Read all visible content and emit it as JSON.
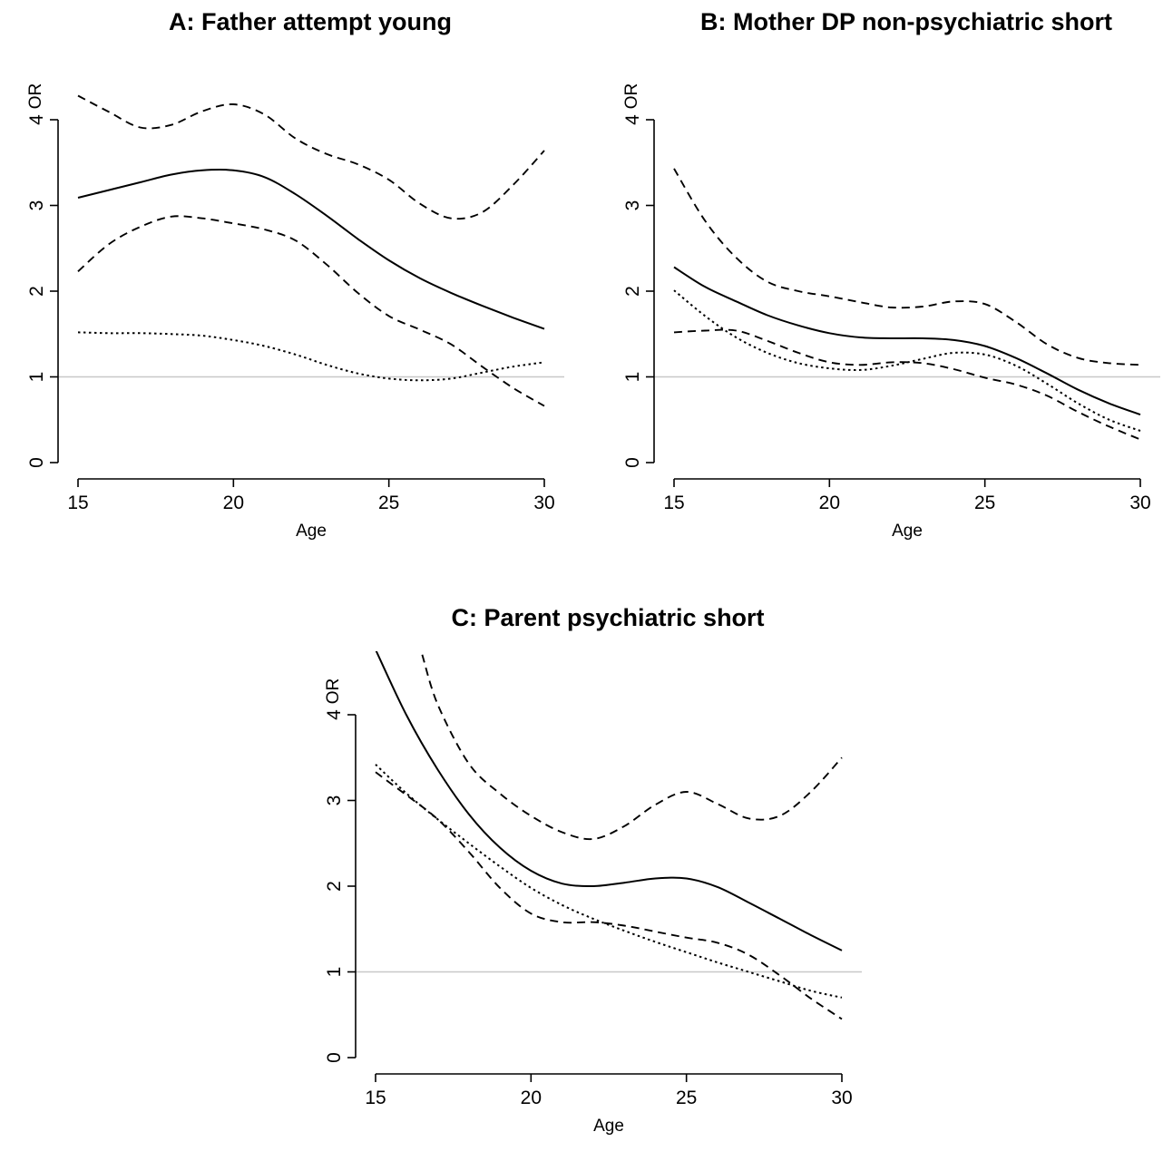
{
  "chart_data": [
    {
      "type": "line",
      "title": "A: Father attempt young",
      "xlabel": "Age",
      "ylabel": "OR",
      "xlim": [
        15,
        30
      ],
      "ylim": [
        0,
        4
      ],
      "x_ticks": [
        "15",
        "20",
        "25",
        "30"
      ],
      "y_ticks": [
        "0",
        "1",
        "2",
        "3",
        "4"
      ],
      "reference_line": 1,
      "x": [
        15,
        16,
        17,
        18,
        19,
        20,
        21,
        22,
        23,
        24,
        25,
        26,
        27,
        28,
        29,
        30
      ],
      "series": [
        {
          "style": "solid",
          "values": [
            3.09,
            3.18,
            3.27,
            3.36,
            3.41,
            3.41,
            3.33,
            3.13,
            2.88,
            2.61,
            2.36,
            2.15,
            1.98,
            1.83,
            1.69,
            1.56
          ]
        },
        {
          "style": "dashed",
          "values": [
            4.28,
            4.09,
            3.91,
            3.94,
            4.1,
            4.18,
            4.06,
            3.78,
            3.6,
            3.48,
            3.3,
            3.02,
            2.85,
            2.92,
            3.24,
            3.64
          ]
        },
        {
          "style": "dashed",
          "values": [
            2.23,
            2.55,
            2.75,
            2.87,
            2.85,
            2.79,
            2.72,
            2.59,
            2.31,
            1.98,
            1.71,
            1.55,
            1.38,
            1.12,
            0.87,
            0.66
          ]
        },
        {
          "style": "dotted",
          "values": [
            1.52,
            1.51,
            1.51,
            1.5,
            1.48,
            1.43,
            1.36,
            1.26,
            1.14,
            1.04,
            0.98,
            0.96,
            0.98,
            1.05,
            1.12,
            1.17
          ]
        }
      ]
    },
    {
      "type": "line",
      "title": "B: Mother DP non-psychiatric short",
      "xlabel": "Age",
      "ylabel": "OR",
      "xlim": [
        15,
        30
      ],
      "ylim": [
        0,
        4
      ],
      "x_ticks": [
        "15",
        "20",
        "25",
        "30"
      ],
      "y_ticks": [
        "0",
        "1",
        "2",
        "3",
        "4"
      ],
      "reference_line": 1,
      "x": [
        15,
        16,
        17,
        18,
        19,
        20,
        21,
        22,
        23,
        24,
        25,
        26,
        27,
        28,
        29,
        30
      ],
      "series": [
        {
          "style": "solid",
          "values": [
            2.28,
            2.05,
            1.88,
            1.72,
            1.6,
            1.51,
            1.46,
            1.45,
            1.45,
            1.43,
            1.36,
            1.22,
            1.04,
            0.85,
            0.69,
            0.56
          ]
        },
        {
          "style": "dashed",
          "values": [
            3.43,
            2.82,
            2.39,
            2.11,
            2.0,
            1.94,
            1.87,
            1.81,
            1.82,
            1.88,
            1.85,
            1.64,
            1.38,
            1.22,
            1.16,
            1.14
          ]
        },
        {
          "style": "dashed",
          "values": [
            1.52,
            1.54,
            1.54,
            1.42,
            1.28,
            1.17,
            1.14,
            1.17,
            1.16,
            1.09,
            0.99,
            0.91,
            0.78,
            0.59,
            0.42,
            0.27
          ]
        },
        {
          "style": "dotted",
          "values": [
            2.01,
            1.71,
            1.46,
            1.28,
            1.16,
            1.1,
            1.08,
            1.13,
            1.21,
            1.28,
            1.26,
            1.13,
            0.92,
            0.69,
            0.5,
            0.37
          ]
        }
      ]
    },
    {
      "type": "line",
      "title": "C: Parent psychiatric short",
      "xlabel": "Age",
      "ylabel": "OR",
      "xlim": [
        15,
        30
      ],
      "ylim": [
        0,
        4
      ],
      "x_ticks": [
        "15",
        "20",
        "25",
        "30"
      ],
      "y_ticks": [
        "0",
        "1",
        "2",
        "3",
        "4"
      ],
      "reference_line": 1,
      "x": [
        15,
        16,
        17,
        18,
        19,
        20,
        21,
        22,
        23,
        24,
        25,
        26,
        27,
        28,
        29,
        30
      ],
      "series": [
        {
          "style": "solid",
          "values": [
            4.76,
            3.99,
            3.36,
            2.84,
            2.45,
            2.18,
            2.03,
            2.0,
            2.04,
            2.09,
            2.09,
            1.99,
            1.81,
            1.62,
            1.43,
            1.25
          ]
        },
        {
          "style": "dashed",
          "x_start": 16.5,
          "x": [
            16.5,
            17,
            18,
            19,
            20,
            21,
            22,
            23,
            24,
            25,
            26,
            27,
            28,
            29,
            30
          ],
          "values": [
            4.7,
            4.12,
            3.43,
            3.08,
            2.82,
            2.63,
            2.55,
            2.7,
            2.95,
            3.1,
            2.96,
            2.79,
            2.82,
            3.1,
            3.5
          ]
        },
        {
          "style": "dashed",
          "values": [
            3.33,
            3.06,
            2.78,
            2.4,
            1.98,
            1.68,
            1.58,
            1.58,
            1.54,
            1.47,
            1.4,
            1.34,
            1.2,
            0.96,
            0.69,
            0.45
          ]
        },
        {
          "style": "dotted",
          "values": [
            3.42,
            3.08,
            2.78,
            2.5,
            2.23,
            1.98,
            1.78,
            1.62,
            1.48,
            1.35,
            1.23,
            1.11,
            1.0,
            0.89,
            0.78,
            0.7
          ]
        }
      ]
    }
  ]
}
